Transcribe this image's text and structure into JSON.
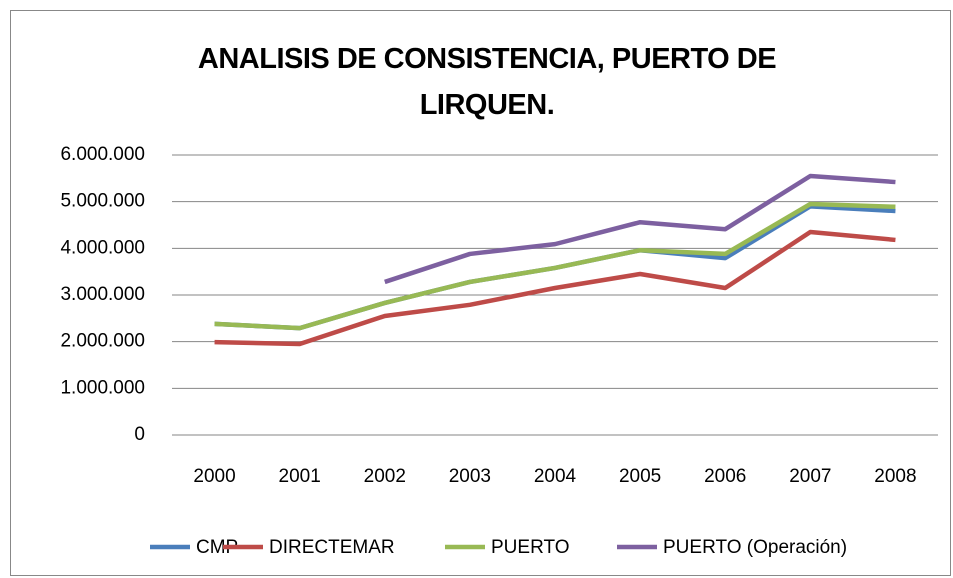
{
  "chart_data": {
    "type": "line",
    "title": "ANALISIS DE CONSISTENCIA, PUERTO DE LIRQUEN.",
    "categories": [
      "2000",
      "2001",
      "2002",
      "2003",
      "2004",
      "2005",
      "2006",
      "2007",
      "2008"
    ],
    "series": [
      {
        "name": "CMP",
        "color": "#4a7ebb",
        "values": [
          2380000,
          2290000,
          2830000,
          3280000,
          3580000,
          3960000,
          3790000,
          4900000,
          4800000
        ]
      },
      {
        "name": "DIRECTEMAR",
        "color": "#be4b48",
        "values": [
          1990000,
          1950000,
          2550000,
          2790000,
          3150000,
          3450000,
          3150000,
          4350000,
          4180000
        ]
      },
      {
        "name": "PUERTO",
        "color": "#98b954",
        "values": [
          2380000,
          2290000,
          2830000,
          3280000,
          3580000,
          3960000,
          3880000,
          4950000,
          4890000
        ]
      },
      {
        "name": "PUERTO (Operación)",
        "color": "#7d60a0",
        "values": [
          null,
          null,
          3280000,
          3880000,
          4090000,
          4560000,
          4410000,
          5550000,
          5420000
        ]
      }
    ],
    "ylim": [
      0,
      6000000
    ],
    "yticks": [
      0,
      {
        "value": 1000000,
        "label": "1.000.000"
      },
      {
        "value": 2000000,
        "label": "2.000.000"
      },
      {
        "value": 3000000,
        "label": "3.000.000"
      },
      {
        "value": 4000000,
        "label": "4.000.000"
      },
      {
        "value": 5000000,
        "label": "5.000.000"
      },
      {
        "value": 6000000,
        "label": "6.000.000"
      }
    ],
    "grid": true,
    "legend": "bottom"
  }
}
